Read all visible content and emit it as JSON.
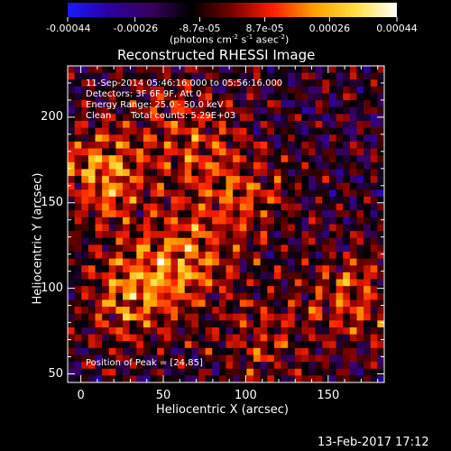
{
  "colorbar": {
    "tick_labels": [
      "-0.00044",
      "-0.00026",
      "-8.7e-05",
      "8.7e-05",
      "0.00026",
      "0.00044"
    ],
    "tick_values": [
      -0.00044,
      -0.00026,
      -8.7e-05,
      8.7e-05,
      0.00026,
      0.00044
    ],
    "range": [
      -0.00044,
      0.00044
    ],
    "unit_prefix": "(photons cm",
    "unit_exp1": "-2",
    "unit_mid": " s",
    "unit_exp2": "-1",
    "unit_mid2": " asec",
    "unit_exp3": "-2",
    "unit_suffix": ")",
    "colormap": [
      "#1a1aff",
      "#2a00a0",
      "#3a0060",
      "#000000",
      "#7a0000",
      "#ff2000",
      "#ffa000",
      "#ffe040",
      "#ffffff"
    ]
  },
  "chart_data": {
    "type": "heatmap",
    "title": "Reconstructed RHESSI Image",
    "xlabel": "Heliocentric X (arcsec)",
    "ylabel": "Heliocentric Y (arcsec)",
    "xlim": [
      -8,
      184
    ],
    "ylim": [
      45,
      230
    ],
    "x_ticks": [
      0,
      50,
      100,
      150
    ],
    "y_ticks": [
      50,
      100,
      150,
      200
    ],
    "colormap": "RHESSI signed (blue-black-red-yellow)",
    "grid": false,
    "hot_regions": [
      {
        "x": 15,
        "y": 165,
        "intensity": 0.0004
      },
      {
        "x": 60,
        "y": 115,
        "intensity": 0.00035
      },
      {
        "x": 30,
        "y": 95,
        "intensity": 0.00033
      },
      {
        "x": 100,
        "y": 150,
        "intensity": 0.00022
      },
      {
        "x": 165,
        "y": 95,
        "intensity": 0.00028
      },
      {
        "x": 75,
        "y": 175,
        "intensity": 0.0002
      },
      {
        "x": 110,
        "y": 70,
        "intensity": 0.00018
      },
      {
        "x": 55,
        "y": 205,
        "intensity": 0.00015
      }
    ],
    "peak": [
      24,
      85
    ]
  },
  "annotations": {
    "time_range": "11-Sep-2014 05:46:16.000 to 05:56:16.000",
    "detectors": "Detectors: 3F 6F 9F, Att 0",
    "energy": "Energy Range: 25.0 - 50.0 keV",
    "algorithm": "Clean",
    "counts": "Total counts: 5.29E+03",
    "peak_text": "Position of Peak = [24,85]"
  },
  "footer": {
    "timestamp": "13-Feb-2017 17:12"
  }
}
